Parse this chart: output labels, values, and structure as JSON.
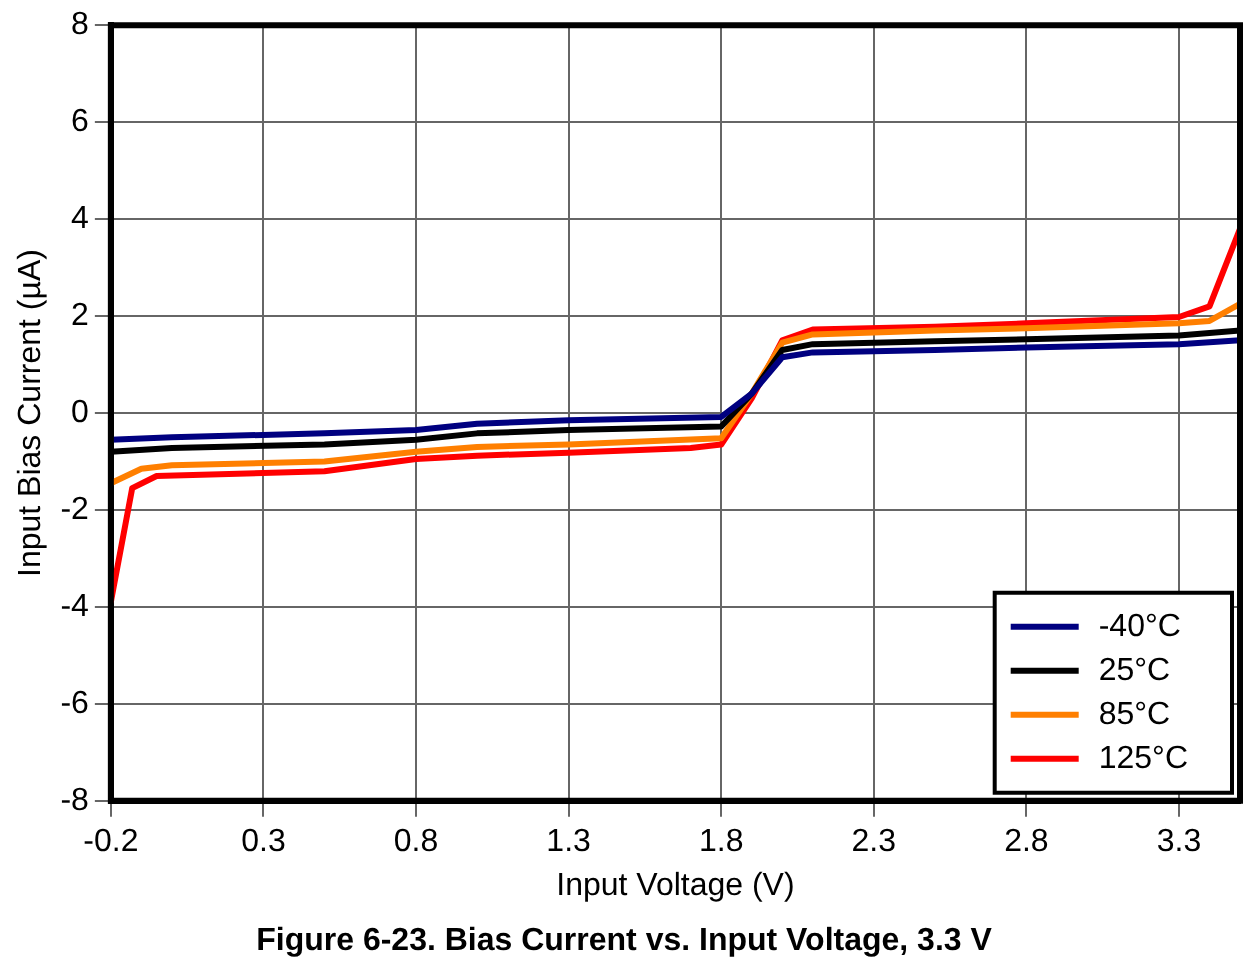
{
  "chart_data": {
    "type": "line",
    "title": "Figure 6-23. Bias Current vs. Input Voltage, 3.3 V",
    "xlabel": "Input Voltage (V)",
    "ylabel": "Input Bias Current (µA)",
    "xlim": [
      -0.2,
      3.5
    ],
    "xticks": [
      -0.2,
      0.3,
      0.8,
      1.3,
      1.8,
      2.3,
      2.8,
      3.3
    ],
    "ylim": [
      -8,
      8
    ],
    "yticks": [
      -8,
      -6,
      -4,
      -2,
      0,
      2,
      4,
      6,
      8
    ],
    "grid": true,
    "legend": "bottom right",
    "marker": "none",
    "line_style": "solid",
    "series": [
      {
        "name": "-40°C",
        "color": "#000080",
        "x": [
          -0.2,
          0.0,
          0.5,
          0.8,
          1.0,
          1.3,
          1.8,
          1.9,
          2.0,
          2.1,
          2.5,
          2.8,
          3.3,
          3.5
        ],
        "values": [
          -0.55,
          -0.5,
          -0.42,
          -0.35,
          -0.22,
          -0.15,
          -0.08,
          0.4,
          1.15,
          1.25,
          1.3,
          1.35,
          1.42,
          1.5
        ]
      },
      {
        "name": "25°C",
        "color": "#000000",
        "x": [
          -0.2,
          0.0,
          0.5,
          0.8,
          1.0,
          1.3,
          1.8,
          1.9,
          2.0,
          2.1,
          2.5,
          2.8,
          3.3,
          3.5
        ],
        "values": [
          -0.8,
          -0.72,
          -0.65,
          -0.55,
          -0.42,
          -0.35,
          -0.28,
          0.4,
          1.3,
          1.42,
          1.48,
          1.52,
          1.6,
          1.7
        ]
      },
      {
        "name": "85°C",
        "color": "#ff7f00",
        "x": [
          -0.2,
          -0.1,
          0.0,
          0.5,
          0.8,
          1.0,
          1.3,
          1.8,
          1.9,
          2.0,
          2.1,
          2.5,
          2.8,
          3.3,
          3.4,
          3.5
        ],
        "values": [
          -1.45,
          -1.15,
          -1.08,
          -1.0,
          -0.8,
          -0.7,
          -0.65,
          -0.52,
          0.4,
          1.45,
          1.62,
          1.7,
          1.75,
          1.85,
          1.9,
          2.25
        ]
      },
      {
        "name": "125°C",
        "color": "#ff0000",
        "x": [
          -0.2,
          -0.13,
          -0.05,
          0.5,
          0.8,
          1.0,
          1.3,
          1.7,
          1.8,
          1.9,
          2.0,
          2.1,
          2.5,
          2.8,
          3.3,
          3.4,
          3.5
        ],
        "values": [
          -3.9,
          -1.55,
          -1.3,
          -1.2,
          -0.95,
          -0.88,
          -0.82,
          -0.72,
          -0.65,
          0.3,
          1.5,
          1.72,
          1.78,
          1.85,
          1.98,
          2.2,
          3.8
        ]
      }
    ]
  }
}
